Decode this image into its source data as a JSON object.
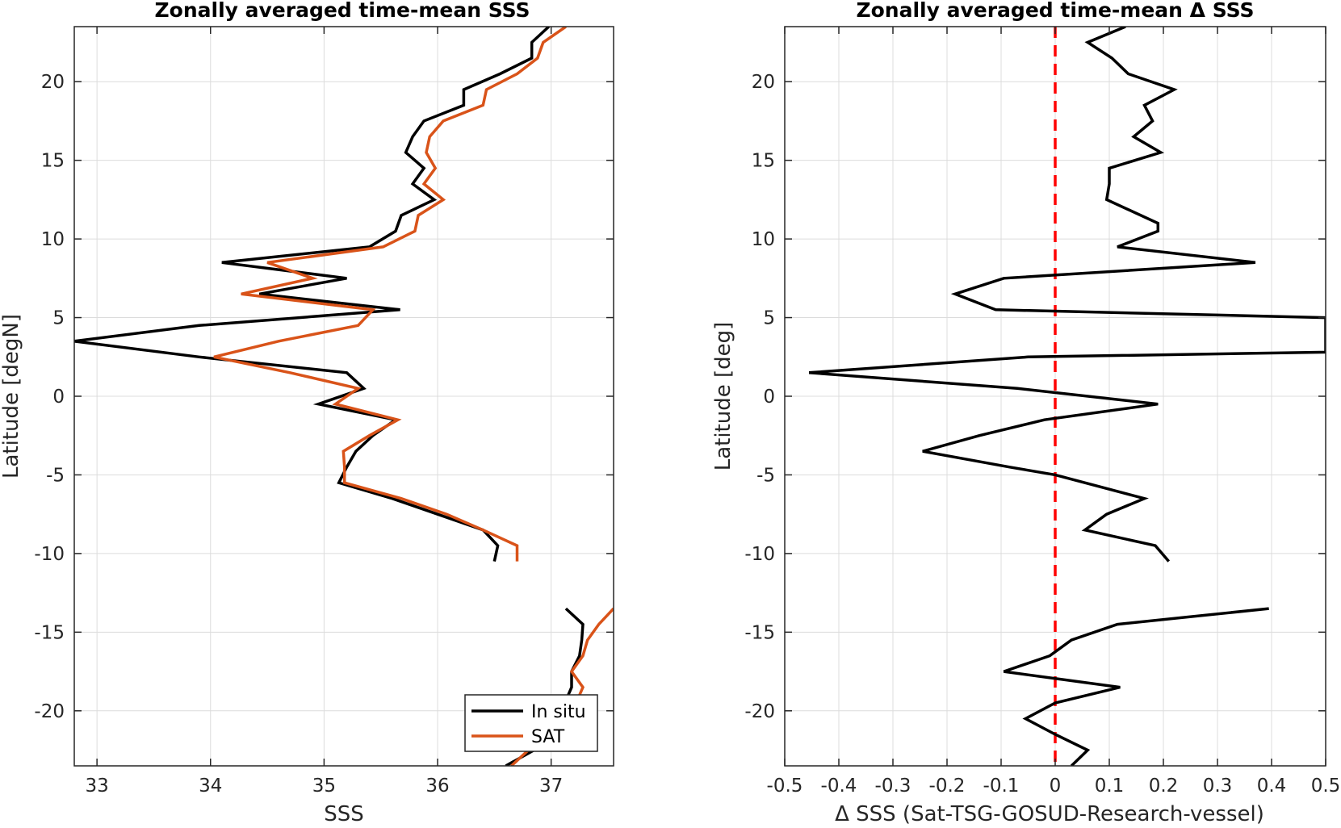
{
  "chart_data": [
    {
      "type": "line",
      "title": "Zonally averaged time-mean SSS",
      "xlabel": "SSS",
      "ylabel": "Latitude [degN]",
      "xlim": [
        32.8,
        37.55
      ],
      "ylim": [
        -23.5,
        23.5
      ],
      "xticks": [
        33,
        34,
        35,
        36,
        37
      ],
      "yticks": [
        -20,
        -15,
        -10,
        -5,
        0,
        5,
        10,
        15,
        20
      ],
      "grid": true,
      "legend": {
        "placement": "bottom-right",
        "entries": [
          "In situ",
          "SAT"
        ]
      },
      "series": [
        {
          "name": "In situ",
          "color": "#000000",
          "segments": [
            [
              [
                36.98,
                23.5
              ],
              [
                36.83,
                22.5
              ],
              [
                36.83,
                21.5
              ],
              [
                36.55,
                20.5
              ],
              [
                36.23,
                19.5
              ],
              [
                36.23,
                18.5
              ],
              [
                35.88,
                17.5
              ],
              [
                35.78,
                16.5
              ],
              [
                35.72,
                15.5
              ],
              [
                35.88,
                14.5
              ],
              [
                35.78,
                13.5
              ],
              [
                35.97,
                12.5
              ],
              [
                35.68,
                11.5
              ],
              [
                35.63,
                10.5
              ],
              [
                35.4,
                9.5
              ],
              [
                34.1,
                8.5
              ],
              [
                35.2,
                7.5
              ],
              [
                34.43,
                6.5
              ],
              [
                35.67,
                5.5
              ],
              [
                33.9,
                4.5
              ],
              [
                32.8,
                3.5
              ],
              [
                33.9,
                2.5
              ],
              [
                35.2,
                1.5
              ],
              [
                35.35,
                0.5
              ],
              [
                34.95,
                -0.5
              ],
              [
                35.63,
                -1.5
              ],
              [
                35.43,
                -2.5
              ],
              [
                35.28,
                -3.5
              ],
              [
                35.2,
                -4.5
              ],
              [
                35.13,
                -5.5
              ],
              [
                35.6,
                -6.5
              ],
              [
                36.0,
                -7.5
              ],
              [
                36.4,
                -8.5
              ],
              [
                36.53,
                -9.5
              ],
              [
                36.5,
                -10.5
              ]
            ],
            [
              [
                37.13,
                -13.5
              ],
              [
                37.28,
                -14.5
              ],
              [
                37.27,
                -15.5
              ],
              [
                37.25,
                -16.5
              ],
              [
                37.18,
                -17.5
              ],
              [
                37.18,
                -18.5
              ],
              [
                37.0,
                -21.5
              ],
              [
                36.85,
                -22.5
              ],
              [
                36.6,
                -23.5
              ]
            ]
          ]
        },
        {
          "name": "SAT",
          "color": "#d95319",
          "segments": [
            [
              [
                37.13,
                23.5
              ],
              [
                36.93,
                22.5
              ],
              [
                36.88,
                21.5
              ],
              [
                36.7,
                20.5
              ],
              [
                36.43,
                19.5
              ],
              [
                36.4,
                18.5
              ],
              [
                36.05,
                17.5
              ],
              [
                35.93,
                16.5
              ],
              [
                35.9,
                15.5
              ],
              [
                35.98,
                14.5
              ],
              [
                35.88,
                13.5
              ],
              [
                36.05,
                12.5
              ],
              [
                35.83,
                11.5
              ],
              [
                35.8,
                10.5
              ],
              [
                35.52,
                9.5
              ],
              [
                34.5,
                8.5
              ],
              [
                34.9,
                7.5
              ],
              [
                34.27,
                6.5
              ],
              [
                35.43,
                5.5
              ],
              [
                35.3,
                4.5
              ],
              [
                34.6,
                3.5
              ],
              [
                34.03,
                2.5
              ],
              [
                34.7,
                1.5
              ],
              [
                35.3,
                0.5
              ],
              [
                35.1,
                -0.5
              ],
              [
                35.65,
                -1.5
              ],
              [
                35.4,
                -2.5
              ],
              [
                35.17,
                -3.5
              ],
              [
                35.18,
                -4.5
              ],
              [
                35.18,
                -5.5
              ],
              [
                35.68,
                -6.5
              ],
              [
                36.08,
                -7.5
              ],
              [
                36.4,
                -8.5
              ],
              [
                36.7,
                -9.5
              ],
              [
                36.7,
                -10.5
              ]
            ],
            [
              [
                37.55,
                -13.5
              ],
              [
                37.42,
                -14.5
              ],
              [
                37.32,
                -15.5
              ],
              [
                37.28,
                -16.5
              ],
              [
                37.18,
                -17.5
              ],
              [
                37.28,
                -18.5
              ],
              [
                37.1,
                -21.5
              ],
              [
                36.8,
                -22.5
              ],
              [
                36.65,
                -23.5
              ]
            ]
          ]
        }
      ]
    },
    {
      "type": "line",
      "title": "Zonally averaged time-mean Δ SSS",
      "xlabel": "Δ SSS (Sat-TSG-GOSUD-Research-vessel)",
      "ylabel": "Latitude [deg]",
      "xlim": [
        -0.5,
        0.5
      ],
      "ylim": [
        -23.5,
        23.5
      ],
      "xticks": [
        -0.5,
        -0.4,
        -0.3,
        -0.2,
        -0.1,
        0,
        0.1,
        0.2,
        0.3,
        0.4,
        0.5
      ],
      "xticklabels": [
        "-0.5",
        "-0.4",
        "-0.3",
        "-0.2",
        "-0.1",
        "0",
        "0.1",
        "0.2",
        "0.3",
        "0.4",
        "0.5"
      ],
      "yticks": [
        -20,
        -15,
        -10,
        -5,
        0,
        5,
        10,
        15,
        20
      ],
      "grid": true,
      "reference_line": {
        "x": 0,
        "color": "#ff0000",
        "style": "dashed"
      },
      "series": [
        {
          "color": "#000000",
          "segments": [
            [
              [
                0.13,
                23.5
              ],
              [
                0.06,
                22.5
              ],
              [
                0.105,
                21.5
              ],
              [
                0.135,
                20.5
              ],
              [
                0.22,
                19.5
              ],
              [
                0.165,
                18.5
              ],
              [
                0.18,
                17.5
              ],
              [
                0.145,
                16.5
              ],
              [
                0.195,
                15.5
              ],
              [
                0.1,
                14.5
              ],
              [
                0.1,
                13.5
              ],
              [
                0.095,
                12.5
              ],
              [
                0.19,
                11.0
              ],
              [
                0.19,
                10.5
              ],
              [
                0.115,
                9.5
              ],
              [
                0.37,
                8.5
              ],
              [
                -0.095,
                7.5
              ],
              [
                -0.185,
                6.5
              ],
              [
                -0.11,
                5.5
              ],
              [
                0.5,
                5.0
              ],
              [
                0.5,
                2.8
              ],
              [
                -0.05,
                2.5
              ],
              [
                -0.455,
                1.5
              ],
              [
                -0.07,
                0.5
              ],
              [
                0.19,
                -0.5
              ],
              [
                -0.02,
                -1.5
              ],
              [
                -0.14,
                -2.5
              ],
              [
                -0.245,
                -3.5
              ],
              [
                -0.085,
                -4.5
              ],
              [
                0.0,
                -5.0
              ],
              [
                0.165,
                -6.5
              ],
              [
                0.095,
                -7.5
              ],
              [
                0.055,
                -8.5
              ],
              [
                0.185,
                -9.5
              ],
              [
                0.21,
                -10.5
              ]
            ],
            [
              [
                0.395,
                -13.5
              ],
              [
                0.115,
                -14.5
              ],
              [
                0.03,
                -15.5
              ],
              [
                -0.01,
                -16.5
              ],
              [
                -0.095,
                -17.5
              ],
              [
                0.12,
                -18.5
              ],
              [
                0.0,
                -19.5
              ],
              [
                -0.055,
                -20.5
              ],
              [
                -0.0,
                -21.5
              ],
              [
                0.06,
                -22.5
              ],
              [
                0.03,
                -23.5
              ]
            ]
          ]
        }
      ]
    }
  ],
  "legend": {
    "in_situ_label": "In situ",
    "sat_label": "SAT"
  }
}
